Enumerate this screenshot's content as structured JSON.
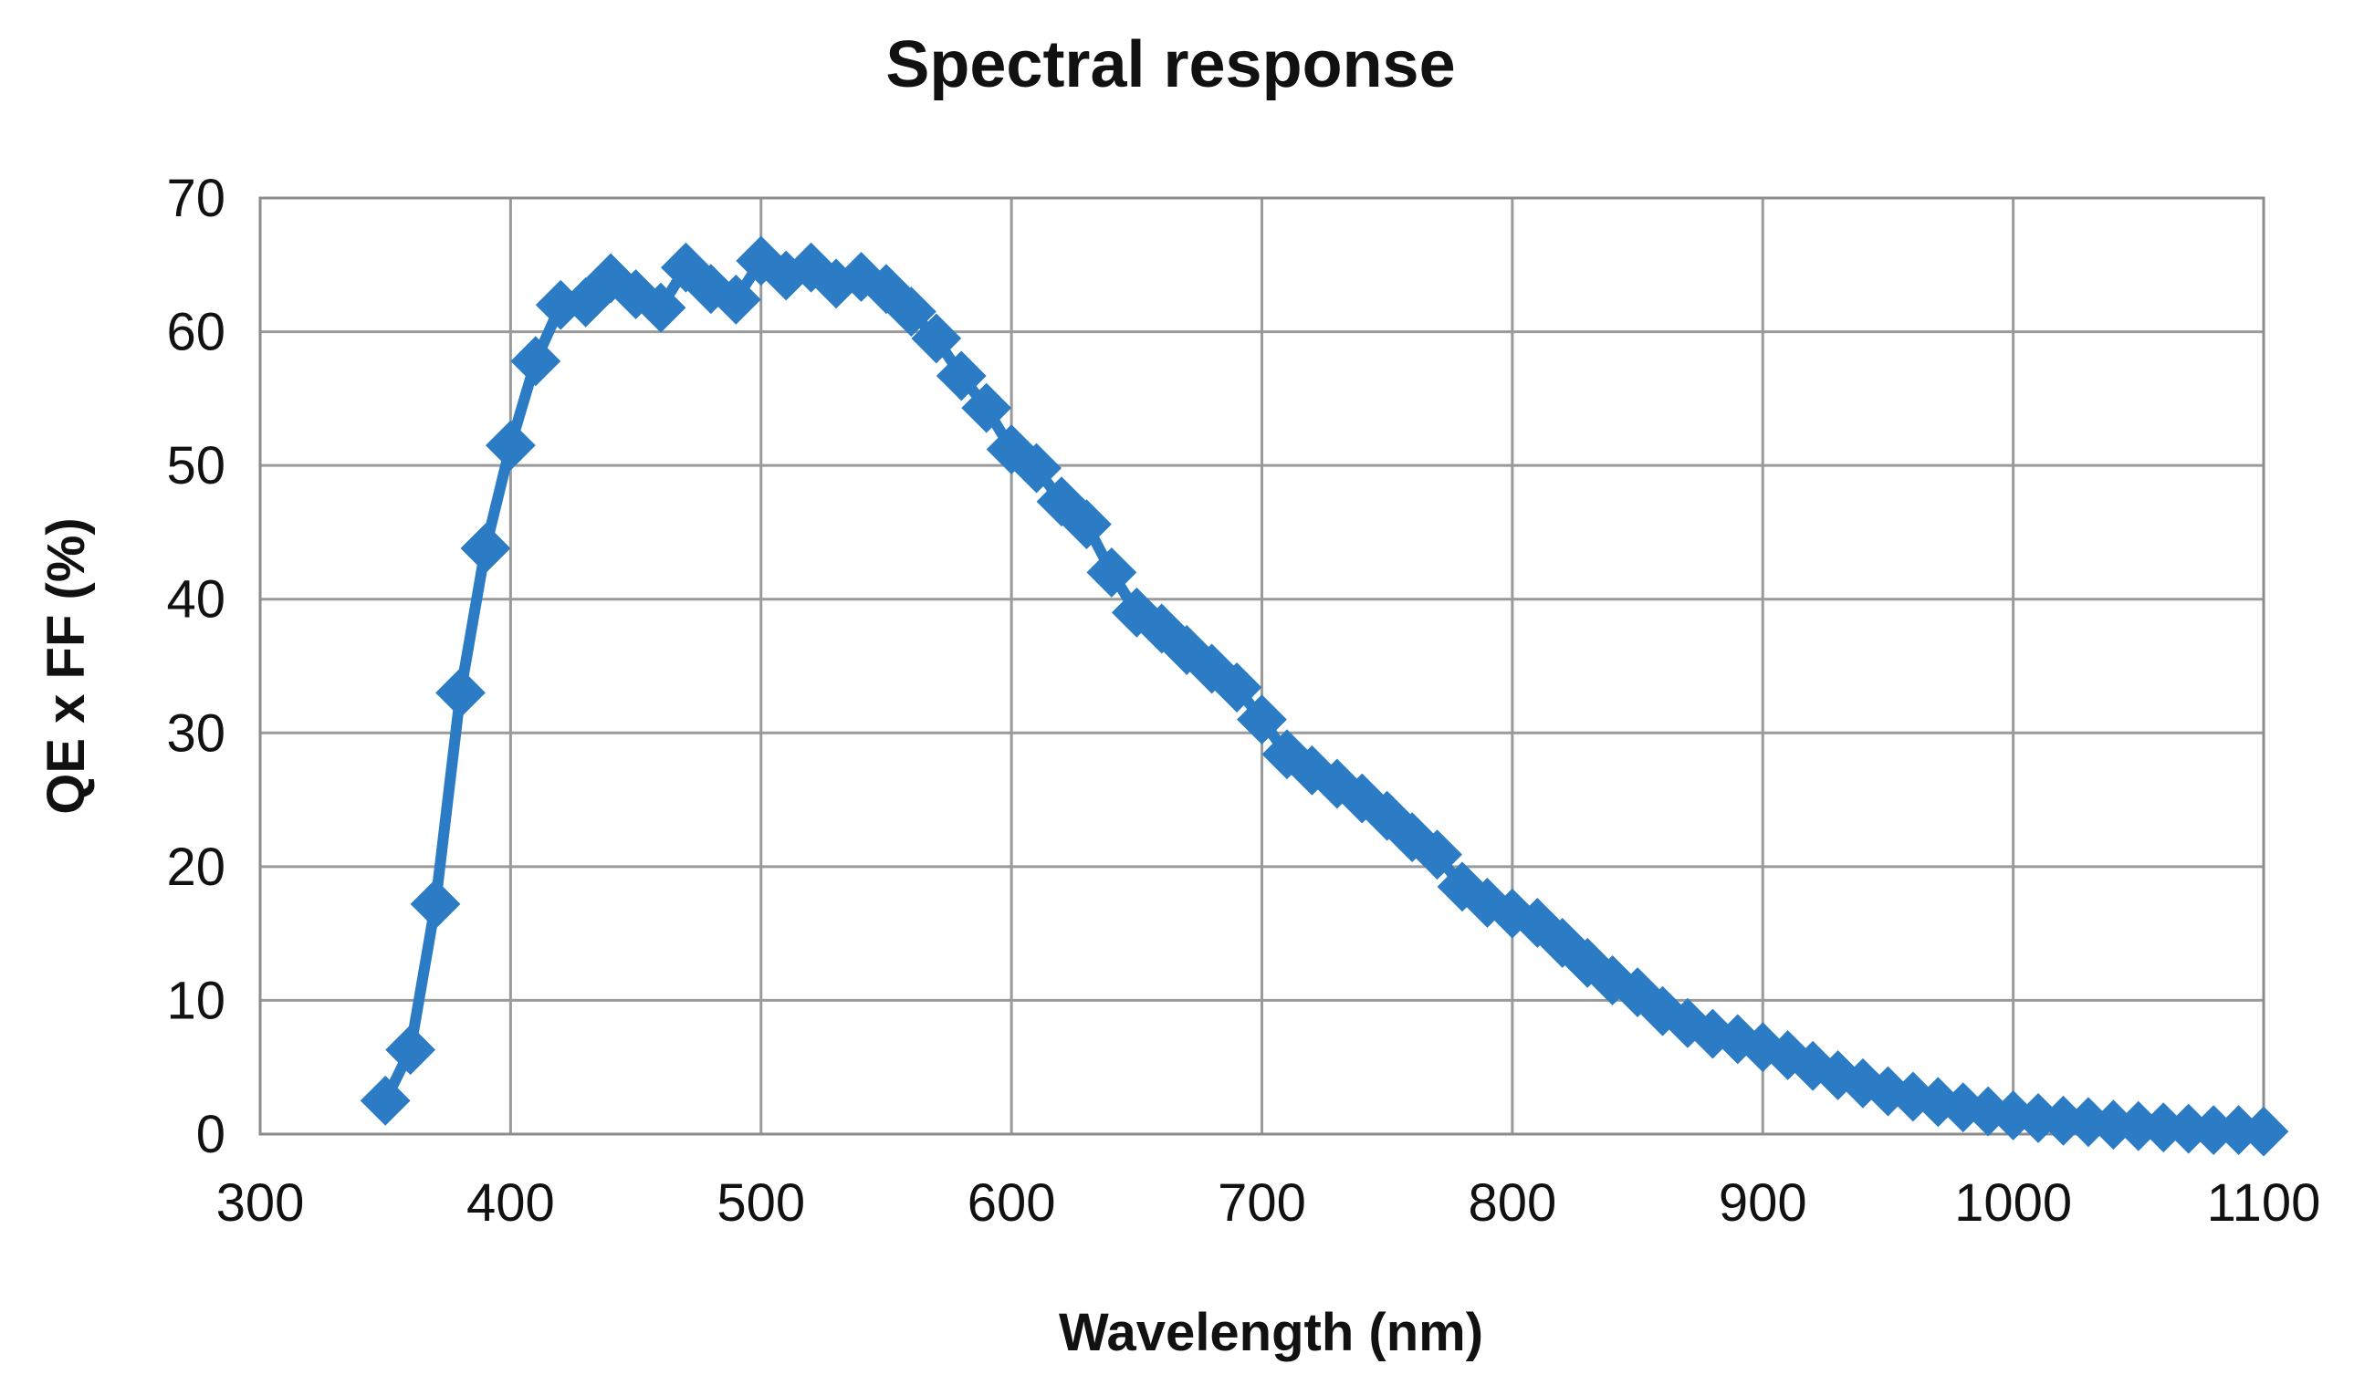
{
  "chart_data": {
    "type": "line",
    "title": "Spectral response",
    "xlabel": "Wavelength (nm)",
    "ylabel": "QE x FF (%)",
    "xlim": [
      300,
      1100
    ],
    "ylim": [
      0,
      70
    ],
    "xticks": [
      300,
      400,
      500,
      600,
      700,
      800,
      900,
      1000,
      1100
    ],
    "yticks": [
      0,
      10,
      20,
      30,
      40,
      50,
      60,
      70
    ],
    "grid": true,
    "marker": "diamond",
    "color": "#2b7cc4",
    "series": [
      {
        "name": "QE x FF",
        "x": [
          350,
          360,
          370,
          380,
          390,
          400,
          410,
          420,
          430,
          440,
          450,
          460,
          470,
          480,
          490,
          500,
          510,
          520,
          530,
          540,
          550,
          560,
          570,
          580,
          590,
          600,
          610,
          620,
          630,
          640,
          650,
          660,
          670,
          680,
          690,
          700,
          710,
          720,
          730,
          740,
          750,
          760,
          770,
          780,
          790,
          800,
          810,
          820,
          830,
          840,
          850,
          860,
          870,
          880,
          890,
          900,
          910,
          920,
          930,
          940,
          950,
          960,
          970,
          980,
          990,
          1000,
          1010,
          1020,
          1030,
          1040,
          1050,
          1060,
          1070,
          1080,
          1090,
          1100
        ],
        "y": [
          2.5,
          6.3,
          17.2,
          33,
          43.8,
          51.5,
          57.8,
          62,
          62.2,
          64,
          62.8,
          61.8,
          64.8,
          63.2,
          62.4,
          65.3,
          64.2,
          64.8,
          63.6,
          64.1,
          63.2,
          61.5,
          59.5,
          56.7,
          54.3,
          51.2,
          49.8,
          47.3,
          45.6,
          42,
          39,
          37.8,
          36.2,
          34.8,
          33.4,
          31,
          28.4,
          27.2,
          26.2,
          25.1,
          23.8,
          22.2,
          20.9,
          18.5,
          17.3,
          16.5,
          15.8,
          14.3,
          12.8,
          11.5,
          10.6,
          9.2,
          8.3,
          7.5,
          7.1,
          6.5,
          5.9,
          5.1,
          4.4,
          3.8,
          3.2,
          2.8,
          2.4,
          2,
          1.7,
          1.4,
          1.2,
          1,
          0.9,
          0.7,
          0.6,
          0.5,
          0.4,
          0.3,
          0.3,
          0.2
        ]
      }
    ]
  }
}
